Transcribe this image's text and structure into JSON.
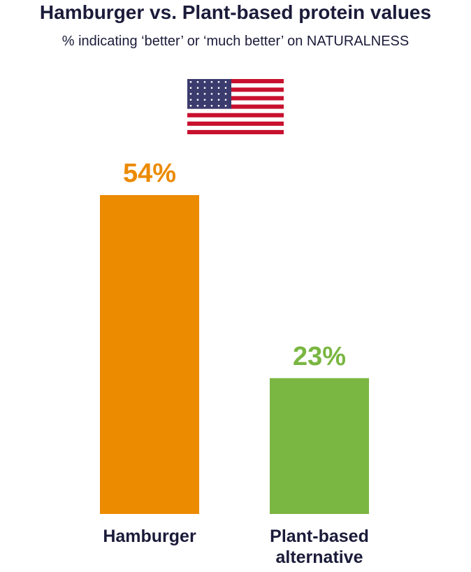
{
  "chart_data": {
    "type": "bar",
    "title": "Hamburger vs. Plant-based protein values",
    "subtitle": "% indicating ‘better’ or ‘much better’ on NATURALNESS",
    "categories": [
      "Hamburger",
      "Plant-based alternative"
    ],
    "values": [
      54,
      23
    ],
    "value_labels": [
      "54%",
      "23%"
    ],
    "colors": [
      "#ec8a00",
      "#7ab642"
    ]
  }
}
